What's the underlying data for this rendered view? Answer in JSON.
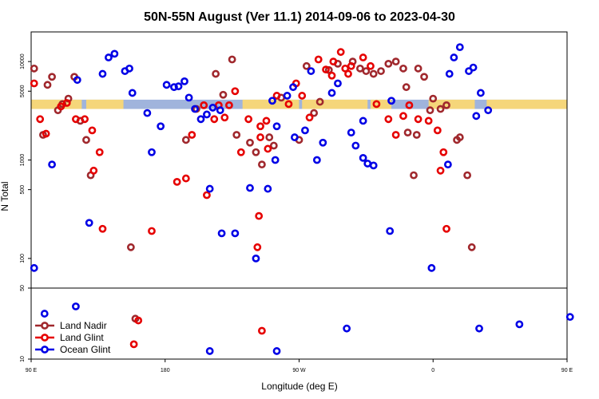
{
  "chart_data": {
    "type": "scatter",
    "title": "50N-55N August (Ver 11.1)   2014-09-06 to 2023-04-30",
    "xlabel": "Longitude (deg E)",
    "ylabel": "N Total",
    "xlim": [
      90,
      450
    ],
    "x_ticks": [
      {
        "value": 90,
        "label": "90 E"
      },
      {
        "value": 180,
        "label": "180"
      },
      {
        "value": 270,
        "label": "90 W"
      },
      {
        "value": 360,
        "label": "0"
      },
      {
        "value": 450,
        "label": "90 E"
      },
      {
        "value": 540,
        "label": "180"
      }
    ],
    "upper_panel": {
      "scale": "log",
      "ylim": [
        50,
        20000
      ],
      "y_ticks": [
        {
          "value": 50,
          "label": "50"
        },
        {
          "value": 100,
          "label": "100"
        },
        {
          "value": 500,
          "label": "500"
        },
        {
          "value": 1000,
          "label": "1000"
        },
        {
          "value": 5000,
          "label": "5000"
        },
        {
          "value": 10000,
          "label": "10000"
        }
      ]
    },
    "lower_panel": {
      "scale": "log",
      "ylim": [
        10,
        50
      ],
      "y_ticks": [
        {
          "value": 10,
          "label": "10"
        },
        {
          "value": 50,
          "label": "50"
        }
      ]
    },
    "land_band": {
      "y_low": 3300,
      "y_high": 4100,
      "ocean_color": "#a0b4dc",
      "land_color": "#f5d67a"
    },
    "legend_position": "bottom-left",
    "series": [
      {
        "name": "Land Nadir",
        "color": "#a0282d",
        "points": [
          [
            92,
            8500
          ],
          [
            98,
            1800
          ],
          [
            101,
            5800
          ],
          [
            104,
            7000
          ],
          [
            108,
            3200
          ],
          [
            111,
            3700
          ],
          [
            115,
            4200
          ],
          [
            119,
            7000
          ],
          [
            123,
            2500
          ],
          [
            127,
            1600
          ],
          [
            130,
            700
          ],
          [
            157,
            130
          ],
          [
            225,
            10500
          ],
          [
            194,
            1600
          ],
          [
            201,
            3300
          ],
          [
            214,
            7500
          ],
          [
            219,
            4600
          ],
          [
            228,
            1800
          ],
          [
            237,
            1500
          ],
          [
            241,
            1200
          ],
          [
            245,
            900
          ],
          [
            250,
            1700
          ],
          [
            253,
            1400
          ],
          [
            258,
            4300
          ],
          [
            270,
            1600
          ],
          [
            275,
            9000
          ],
          [
            280,
            3000
          ],
          [
            284,
            3900
          ],
          [
            290,
            8200
          ],
          [
            296,
            9500
          ],
          [
            306,
            10000
          ],
          [
            311,
            8500
          ],
          [
            315,
            8000
          ],
          [
            320,
            7500
          ],
          [
            325,
            8000
          ],
          [
            330,
            9500
          ],
          [
            335,
            10000
          ],
          [
            340,
            8500
          ],
          [
            342,
            5500
          ],
          [
            350,
            8500
          ],
          [
            354,
            7000
          ],
          [
            358,
            3200
          ],
          [
            360,
            4200
          ],
          [
            365,
            3300
          ],
          [
            369,
            3600
          ],
          [
            376,
            1600
          ],
          [
            378,
            1700
          ],
          [
            383,
            700
          ],
          [
            386,
            130
          ],
          [
            343,
            1900
          ],
          [
            349,
            1800
          ],
          [
            347,
            700
          ]
        ]
      },
      {
        "name": "Land Glint",
        "color": "#e60000",
        "points": [
          [
            92,
            6000
          ],
          [
            96,
            2600
          ],
          [
            100,
            1850
          ],
          [
            110,
            3500
          ],
          [
            114,
            3800
          ],
          [
            120,
            2600
          ],
          [
            126,
            2600
          ],
          [
            131,
            2000
          ],
          [
            132,
            780
          ],
          [
            136,
            1200
          ],
          [
            138,
            200
          ],
          [
            171,
            190
          ],
          [
            198,
            1800
          ],
          [
            206,
            3600
          ],
          [
            208,
            440
          ],
          [
            213,
            2600
          ],
          [
            216,
            3600
          ],
          [
            220,
            2700
          ],
          [
            223,
            3600
          ],
          [
            227,
            5000
          ],
          [
            231,
            1200
          ],
          [
            236,
            2600
          ],
          [
            244,
            2200
          ],
          [
            249,
            1300
          ],
          [
            248,
            2500
          ],
          [
            255,
            4500
          ],
          [
            263,
            3700
          ],
          [
            268,
            6000
          ],
          [
            272,
            4500
          ],
          [
            277,
            2700
          ],
          [
            283,
            10500
          ],
          [
            288,
            8300
          ],
          [
            293,
            10000
          ],
          [
            298,
            12500
          ],
          [
            301,
            8500
          ],
          [
            305,
            9000
          ],
          [
            313,
            11000
          ],
          [
            318,
            9000
          ],
          [
            322,
            3700
          ],
          [
            330,
            2600
          ],
          [
            335,
            1800
          ],
          [
            340,
            2800
          ],
          [
            344,
            3600
          ],
          [
            350,
            2600
          ],
          [
            357,
            2500
          ],
          [
            363,
            2000
          ],
          [
            365,
            780
          ],
          [
            367,
            1200
          ],
          [
            369,
            200
          ],
          [
            188,
            600
          ],
          [
            194,
            650
          ],
          [
            242,
            130
          ],
          [
            243,
            270
          ],
          [
            244,
            1700
          ],
          [
            303,
            7500
          ],
          [
            292,
            7200
          ]
        ]
      },
      {
        "name": "Ocean Glint",
        "color": "#0000e6",
        "points": [
          [
            92,
            80
          ],
          [
            104,
            900
          ],
          [
            121,
            6500
          ],
          [
            129,
            230
          ],
          [
            138,
            7500
          ],
          [
            142,
            11000
          ],
          [
            146,
            12000
          ],
          [
            153,
            8000
          ],
          [
            156,
            8500
          ],
          [
            158,
            4800
          ],
          [
            168,
            3000
          ],
          [
            171,
            1200
          ],
          [
            177,
            2200
          ],
          [
            181,
            5800
          ],
          [
            186,
            5500
          ],
          [
            189,
            5600
          ],
          [
            193,
            6300
          ],
          [
            196,
            4300
          ],
          [
            200,
            3300
          ],
          [
            204,
            2600
          ],
          [
            208,
            2900
          ],
          [
            212,
            3400
          ],
          [
            227,
            180
          ],
          [
            218,
            180
          ],
          [
            255,
            2200
          ],
          [
            252,
            4000
          ],
          [
            262,
            4500
          ],
          [
            266,
            5500
          ],
          [
            274,
            2000
          ],
          [
            282,
            1000
          ],
          [
            286,
            1500
          ],
          [
            292,
            4800
          ],
          [
            296,
            6000
          ],
          [
            305,
            1900
          ],
          [
            308,
            1400
          ],
          [
            313,
            1050
          ],
          [
            316,
            920
          ],
          [
            320,
            880
          ],
          [
            331,
            190
          ],
          [
            378,
            14000
          ],
          [
            371,
            7500
          ],
          [
            374,
            11000
          ],
          [
            384,
            8000
          ],
          [
            387,
            8700
          ],
          [
            392,
            4800
          ],
          [
            397,
            3200
          ],
          [
            359,
            80
          ],
          [
            370,
            900
          ],
          [
            389,
            2800
          ],
          [
            249,
            510
          ],
          [
            237,
            520
          ],
          [
            241,
            100
          ],
          [
            254,
            1000
          ],
          [
            267,
            1700
          ],
          [
            217,
            3200
          ],
          [
            210,
            510
          ],
          [
            332,
            4000
          ],
          [
            278,
            8000
          ],
          [
            313,
            2500
          ]
        ]
      }
    ],
    "lower_points": [
      {
        "series": "Land Nadir",
        "x": 160,
        "y": 25
      },
      {
        "series": "Land Glint",
        "x": 159,
        "y": 14
      },
      {
        "series": "Land Glint",
        "x": 162,
        "y": 24
      },
      {
        "series": "Land Glint",
        "x": 245,
        "y": 19
      },
      {
        "series": "Ocean Glint",
        "x": 99,
        "y": 28
      },
      {
        "series": "Ocean Glint",
        "x": 120,
        "y": 33
      },
      {
        "series": "Ocean Glint",
        "x": 210,
        "y": 12
      },
      {
        "series": "Ocean Glint",
        "x": 255,
        "y": 12
      },
      {
        "series": "Ocean Glint",
        "x": 302,
        "y": 20
      },
      {
        "series": "Ocean Glint",
        "x": 391,
        "y": 20
      },
      {
        "series": "Ocean Glint",
        "x": 418,
        "y": 22
      },
      {
        "series": "Ocean Glint",
        "x": 452,
        "y": 26
      }
    ]
  }
}
